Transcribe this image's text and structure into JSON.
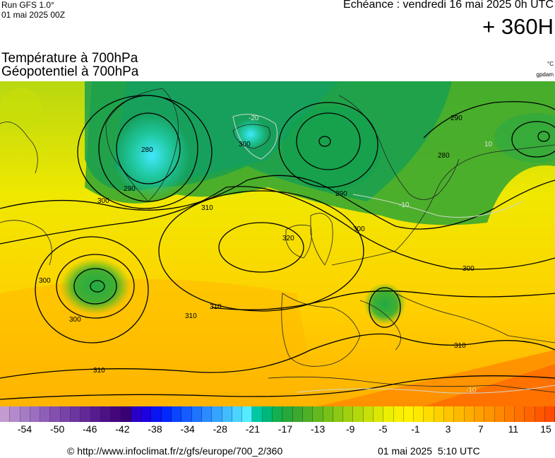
{
  "header": {
    "run": "Run GFS 1.0°",
    "run_date": "01 mai 2025 00Z",
    "valid": "Echéance : vendredi 16 mai 2025 0h UTC",
    "lead": "+ 360H"
  },
  "titles": {
    "line1": "Température à 700hPa",
    "line2": "Géopotentiel à 700hPa"
  },
  "units": {
    "temperature": "°C",
    "geopotential": "gpdam"
  },
  "map": {
    "region": "Europe / North Atlantic",
    "contour_labels": [
      "300",
      "300",
      "290",
      "280",
      "310",
      "320",
      "310",
      "300",
      "310",
      "310",
      "300",
      "310",
      "300",
      "290",
      "290",
      "280",
      "300",
      "10",
      "-10",
      "-20",
      "-10"
    ]
  },
  "colorscale": {
    "labels": [
      "-54",
      "-50",
      "-46",
      "-42",
      "-38",
      "-34",
      "-28",
      "-21",
      "-17",
      "-13",
      "-9",
      "-5",
      "-1",
      "3",
      "7",
      "11",
      "15"
    ],
    "colors": [
      "#c49bd0",
      "#b38acb",
      "#a47cc4",
      "#9b6ec0",
      "#8e5fb8",
      "#8350b0",
      "#7843a8",
      "#6d35a0",
      "#622897",
      "#581b8f",
      "#4d1087",
      "#43067c",
      "#380073",
      "#2a00c8",
      "#1d00e0",
      "#0a14f0",
      "#0028ff",
      "#0a44ff",
      "#145cff",
      "#1e74ff",
      "#2a8cff",
      "#34a4ff",
      "#40bcff",
      "#4ad4ff",
      "#56ecff",
      "#00c8a0",
      "#00b878",
      "#14b050",
      "#28a838",
      "#3ca830",
      "#50b028",
      "#64b820",
      "#78c018",
      "#8cc814",
      "#a0d010",
      "#b4d80c",
      "#c8e008",
      "#dce804",
      "#ecf000",
      "#f8f000",
      "#fff000",
      "#ffe800",
      "#ffdc00",
      "#ffd000",
      "#ffc400",
      "#ffb800",
      "#ffac00",
      "#ffa000",
      "#ff9400",
      "#ff8800",
      "#ff7c00",
      "#ff7000",
      "#ff6400",
      "#ff5800",
      "#ff4c00"
    ]
  },
  "footer": {
    "credit": "© http://www.infoclimat.fr/z/gfs/europe/700_2/360",
    "generated": "01 mai 2025  5:10 UTC"
  }
}
